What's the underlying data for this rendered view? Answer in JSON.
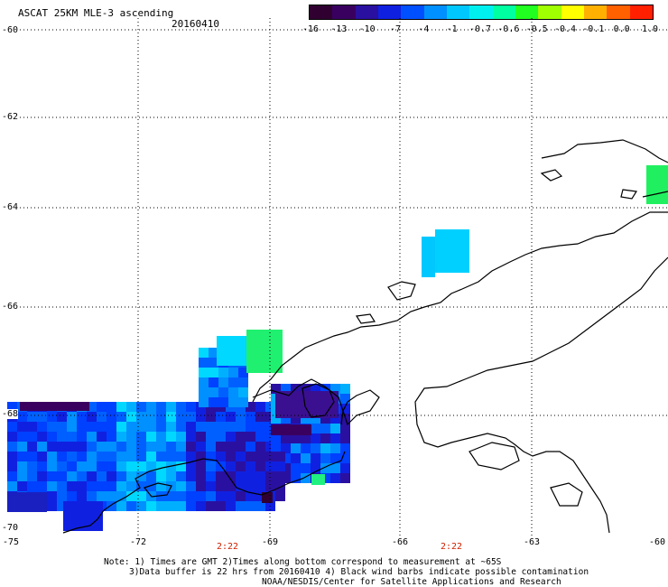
{
  "header": {
    "title": "ASCAT 25KM MLE-3 ascending",
    "date": "20160410"
  },
  "legend": {
    "ticks": [
      "-16",
      "-13",
      "-10",
      "-7",
      "-4",
      "-1",
      "-0.7",
      "-0.6",
      "-0.5",
      "-0.4",
      "-0.1",
      "0.0",
      "1.0"
    ],
    "colors": [
      "#300030",
      "#3a0060",
      "#2a10a0",
      "#1020e0",
      "#0050ff",
      "#0090ff",
      "#00c8ff",
      "#00f0f0",
      "#00ffa0",
      "#20ff20",
      "#a0ff00",
      "#ffff00",
      "#ffb000",
      "#ff6000",
      "#ff2000"
    ]
  },
  "axes": {
    "y_labels": [
      "-60",
      "-62",
      "-64",
      "-66",
      "-68",
      "-70"
    ],
    "x_labels": [
      "-75",
      "-72",
      "-69",
      "-66",
      "-63",
      "-60"
    ]
  },
  "pass_times": [
    "2:22",
    "2:22"
  ],
  "notes": {
    "line1": "Note: 1) Times are GMT 2)Times along bottom correspond to measurement at ~65S",
    "line2": "3)Data buffer is 22 hrs from 20160410 4) Black wind barbs indicate possible contamination",
    "line3": "NOAA/NESDIS/Center for Satellite Applications and Research"
  }
}
